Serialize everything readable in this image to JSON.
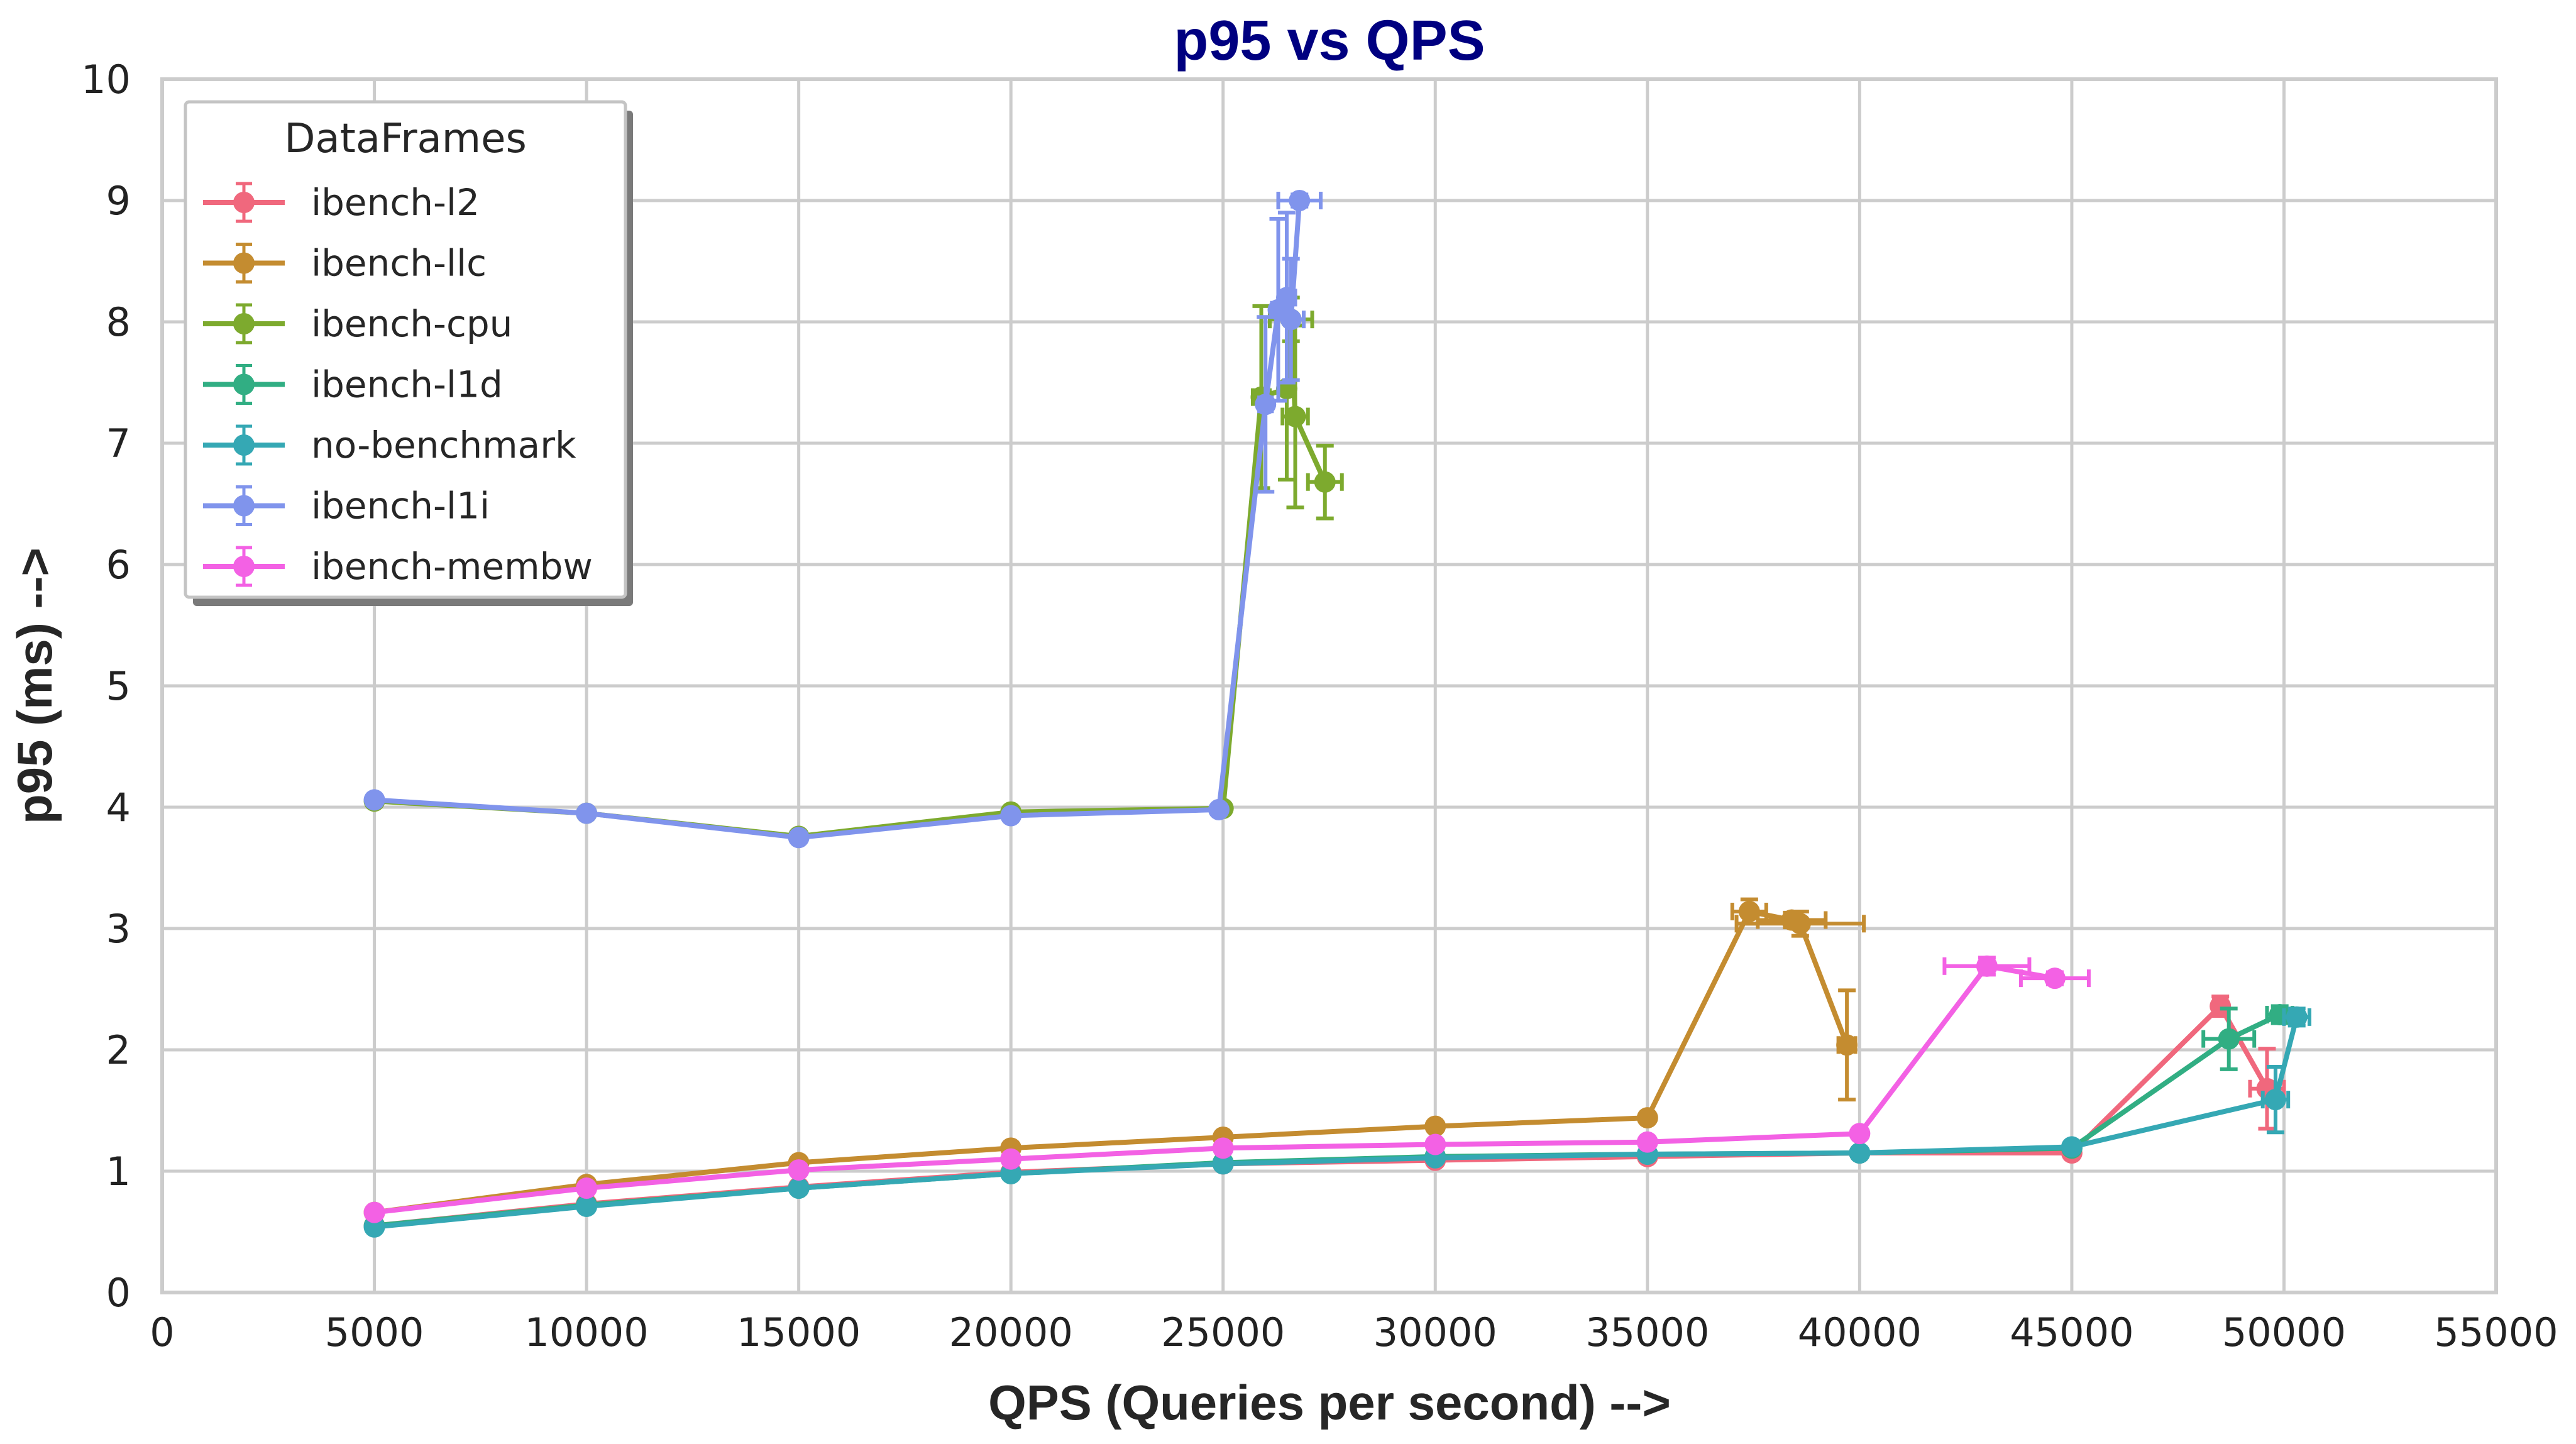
{
  "chart_data": {
    "type": "line",
    "title": "p95 vs QPS",
    "title_color": "#000080",
    "xlabel": "QPS (Queries per second) -->",
    "ylabel": "p95 (ms) -->",
    "xlim": [
      0,
      55000
    ],
    "ylim": [
      0,
      10
    ],
    "x_ticks": [
      0,
      5000,
      10000,
      15000,
      20000,
      25000,
      30000,
      35000,
      40000,
      45000,
      50000,
      55000
    ],
    "y_ticks": [
      0,
      1,
      2,
      3,
      4,
      5,
      6,
      7,
      8,
      9,
      10
    ],
    "grid": true,
    "legend_title": "DataFrames",
    "legend_position": "top-left",
    "series": [
      {
        "name": "ibench-l2",
        "color": "#f0687d",
        "points": [
          {
            "x": 5000,
            "y": 0.55
          },
          {
            "x": 10000,
            "y": 0.73
          },
          {
            "x": 15000,
            "y": 0.87
          },
          {
            "x": 20000,
            "y": 0.99
          },
          {
            "x": 25000,
            "y": 1.06
          },
          {
            "x": 30000,
            "y": 1.09
          },
          {
            "x": 35000,
            "y": 1.12
          },
          {
            "x": 40000,
            "y": 1.15
          },
          {
            "x": 45000,
            "y": 1.15
          },
          {
            "x": 48500,
            "y": 2.36,
            "yerr": 0.08,
            "xerr": 150
          },
          {
            "x": 49600,
            "y": 1.68,
            "yerr": 0.33,
            "xerr": 400
          }
        ]
      },
      {
        "name": "ibench-llc",
        "color": "#c48c30",
        "points": [
          {
            "x": 5000,
            "y": 0.66
          },
          {
            "x": 10000,
            "y": 0.89
          },
          {
            "x": 15000,
            "y": 1.07
          },
          {
            "x": 20000,
            "y": 1.19
          },
          {
            "x": 25000,
            "y": 1.28
          },
          {
            "x": 30000,
            "y": 1.37
          },
          {
            "x": 35000,
            "y": 1.44
          },
          {
            "x": 37400,
            "y": 3.14,
            "yerr": 0.1,
            "xerr": 400
          },
          {
            "x": 38400,
            "y": 3.07,
            "yerr": 0.06,
            "xerr": 800
          },
          {
            "x": 38600,
            "y": 3.04,
            "yerr": 0.1,
            "xerr": 1500
          },
          {
            "x": 39700,
            "y": 2.04,
            "yerr": 0.45,
            "xerr": 200
          }
        ]
      },
      {
        "name": "ibench-cpu",
        "color": "#7daa2e",
        "points": [
          {
            "x": 5000,
            "y": 4.05
          },
          {
            "x": 10000,
            "y": 3.95
          },
          {
            "x": 15000,
            "y": 3.76
          },
          {
            "x": 20000,
            "y": 3.96
          },
          {
            "x": 25000,
            "y": 3.99
          },
          {
            "x": 25900,
            "y": 7.38,
            "yerr": 0.75,
            "xerr": 200
          },
          {
            "x": 26500,
            "y": 7.45,
            "yerr": 0.75,
            "xerr": 200
          },
          {
            "x": 26600,
            "y": 8.02,
            "yerr": 0.18,
            "xerr": 500
          },
          {
            "x": 26700,
            "y": 7.22,
            "yerr": 0.75,
            "xerr": 300
          },
          {
            "x": 27400,
            "y": 6.68,
            "yerr": 0.3,
            "xerr": 400
          }
        ]
      },
      {
        "name": "ibench-l1d",
        "color": "#31ae83",
        "points": [
          {
            "x": 5000,
            "y": 0.55
          },
          {
            "x": 10000,
            "y": 0.72
          },
          {
            "x": 15000,
            "y": 0.86
          },
          {
            "x": 20000,
            "y": 0.98
          },
          {
            "x": 25000,
            "y": 1.07
          },
          {
            "x": 30000,
            "y": 1.12
          },
          {
            "x": 35000,
            "y": 1.14
          },
          {
            "x": 40000,
            "y": 1.15
          },
          {
            "x": 45000,
            "y": 1.19
          },
          {
            "x": 48700,
            "y": 2.09,
            "yerr": 0.25,
            "xerr": 600
          },
          {
            "x": 49900,
            "y": 2.29,
            "yerr": 0.07,
            "xerr": 300
          }
        ]
      },
      {
        "name": "no-benchmark",
        "color": "#35a8b4",
        "points": [
          {
            "x": 5000,
            "y": 0.54
          },
          {
            "x": 10000,
            "y": 0.71
          },
          {
            "x": 15000,
            "y": 0.86
          },
          {
            "x": 20000,
            "y": 0.98
          },
          {
            "x": 25000,
            "y": 1.06
          },
          {
            "x": 30000,
            "y": 1.11
          },
          {
            "x": 35000,
            "y": 1.14
          },
          {
            "x": 40000,
            "y": 1.15
          },
          {
            "x": 45000,
            "y": 1.2
          },
          {
            "x": 49800,
            "y": 1.59,
            "yerr": 0.27,
            "xerr": 300
          },
          {
            "x": 50300,
            "y": 2.27,
            "yerr": 0.07,
            "xerr": 300
          }
        ]
      },
      {
        "name": "ibench-l1i",
        "color": "#8094ec",
        "points": [
          {
            "x": 5000,
            "y": 4.06
          },
          {
            "x": 10000,
            "y": 3.95
          },
          {
            "x": 15000,
            "y": 3.75
          },
          {
            "x": 20000,
            "y": 3.93
          },
          {
            "x": 24900,
            "y": 3.98
          },
          {
            "x": 26000,
            "y": 7.32,
            "yerr": 0.72,
            "xerr": 150
          },
          {
            "x": 26300,
            "y": 8.1,
            "yerr": 0.75,
            "xerr": 150
          },
          {
            "x": 26500,
            "y": 8.2,
            "yerr": 0.7,
            "xerr": 200
          },
          {
            "x": 26600,
            "y": 8.02,
            "yerr": 0.5,
            "xerr": 300
          },
          {
            "x": 26800,
            "y": 9.0,
            "yerr": 0.05,
            "xerr": 500
          }
        ]
      },
      {
        "name": "ibench-membw",
        "color": "#f361e4",
        "points": [
          {
            "x": 5000,
            "y": 0.66
          },
          {
            "x": 10000,
            "y": 0.86
          },
          {
            "x": 15000,
            "y": 1.01
          },
          {
            "x": 20000,
            "y": 1.1
          },
          {
            "x": 25000,
            "y": 1.19
          },
          {
            "x": 30000,
            "y": 1.22
          },
          {
            "x": 35000,
            "y": 1.24
          },
          {
            "x": 40000,
            "y": 1.31
          },
          {
            "x": 43000,
            "y": 2.69,
            "yerr": 0.07,
            "xerr": 1000
          },
          {
            "x": 44600,
            "y": 2.59,
            "yerr": 0.05,
            "xerr": 800
          }
        ]
      }
    ]
  }
}
